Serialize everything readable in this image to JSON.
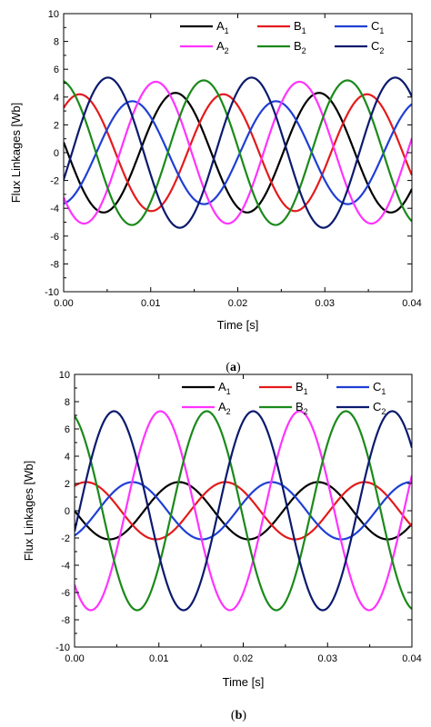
{
  "colors": {
    "A1": "#000000",
    "B1": "#e41a1c",
    "C1": "#1f3fd4",
    "A2": "#ff33ff",
    "B2": "#1a8a1a",
    "C2": "#0b1a6e"
  },
  "chart_data": [
    {
      "type": "line",
      "caption": {
        "open": "(",
        "letter": "a",
        "close": ")"
      },
      "xlabel": "Time [s]",
      "ylabel": "Flux Linkages [Wb]",
      "xlim": [
        0,
        0.04
      ],
      "ylim": [
        -10,
        10
      ],
      "x_ticks": [
        "0.00",
        "0.01",
        "0.02",
        "0.03",
        "0.04"
      ],
      "y_ticks": [
        "-10",
        "-8",
        "-6",
        "-4",
        "-2",
        "0",
        "2",
        "4",
        "6",
        "8",
        "10"
      ],
      "grid": false,
      "legend_position": "top",
      "series": [
        {
          "key": "A1",
          "name": "A",
          "sub": "1",
          "amplitude": 4.3,
          "phase_deg": 170
        },
        {
          "key": "B1",
          "name": "B",
          "sub": "1",
          "amplitude": 4.2,
          "phase_deg": 50
        },
        {
          "key": "C1",
          "name": "C",
          "sub": "1",
          "amplitude": 3.7,
          "phase_deg": -82
        },
        {
          "key": "A2",
          "name": "A",
          "sub": "2",
          "amplitude": 5.1,
          "phase_deg": 219
        },
        {
          "key": "B2",
          "name": "B",
          "sub": "2",
          "amplitude": 5.2,
          "phase_deg": 99
        },
        {
          "key": "C2",
          "name": "C",
          "sub": "2",
          "amplitude": 5.4,
          "phase_deg": -21
        }
      ],
      "period_s": 0.0165
    },
    {
      "type": "line",
      "caption": {
        "open": "(",
        "letter": "b",
        "close": ")"
      },
      "xlabel": "Time [s]",
      "ylabel": "Flux Linkages [Wb]",
      "xlim": [
        0,
        0.04
      ],
      "ylim": [
        -10,
        10
      ],
      "x_ticks": [
        "0.00",
        "0.01",
        "0.02",
        "0.03",
        "0.04"
      ],
      "y_ticks": [
        "-10",
        "-8",
        "-6",
        "-4",
        "-2",
        "0",
        "2",
        "4",
        "6",
        "8",
        "10"
      ],
      "grid": false,
      "legend_position": "top",
      "series": [
        {
          "key": "A1",
          "name": "A",
          "sub": "1",
          "amplitude": 2.1,
          "phase_deg": 180
        },
        {
          "key": "B1",
          "name": "B",
          "sub": "1",
          "amplitude": 2.1,
          "phase_deg": 60
        },
        {
          "key": "C1",
          "name": "C",
          "sub": "1",
          "amplitude": 2.1,
          "phase_deg": -60
        },
        {
          "key": "A2",
          "name": "A",
          "sub": "2",
          "amplitude": 7.3,
          "phase_deg": 228
        },
        {
          "key": "B2",
          "name": "B",
          "sub": "2",
          "amplitude": 7.3,
          "phase_deg": 108
        },
        {
          "key": "C2",
          "name": "C",
          "sub": "2",
          "amplitude": 7.3,
          "phase_deg": -12
        }
      ],
      "period_s": 0.0165
    }
  ]
}
